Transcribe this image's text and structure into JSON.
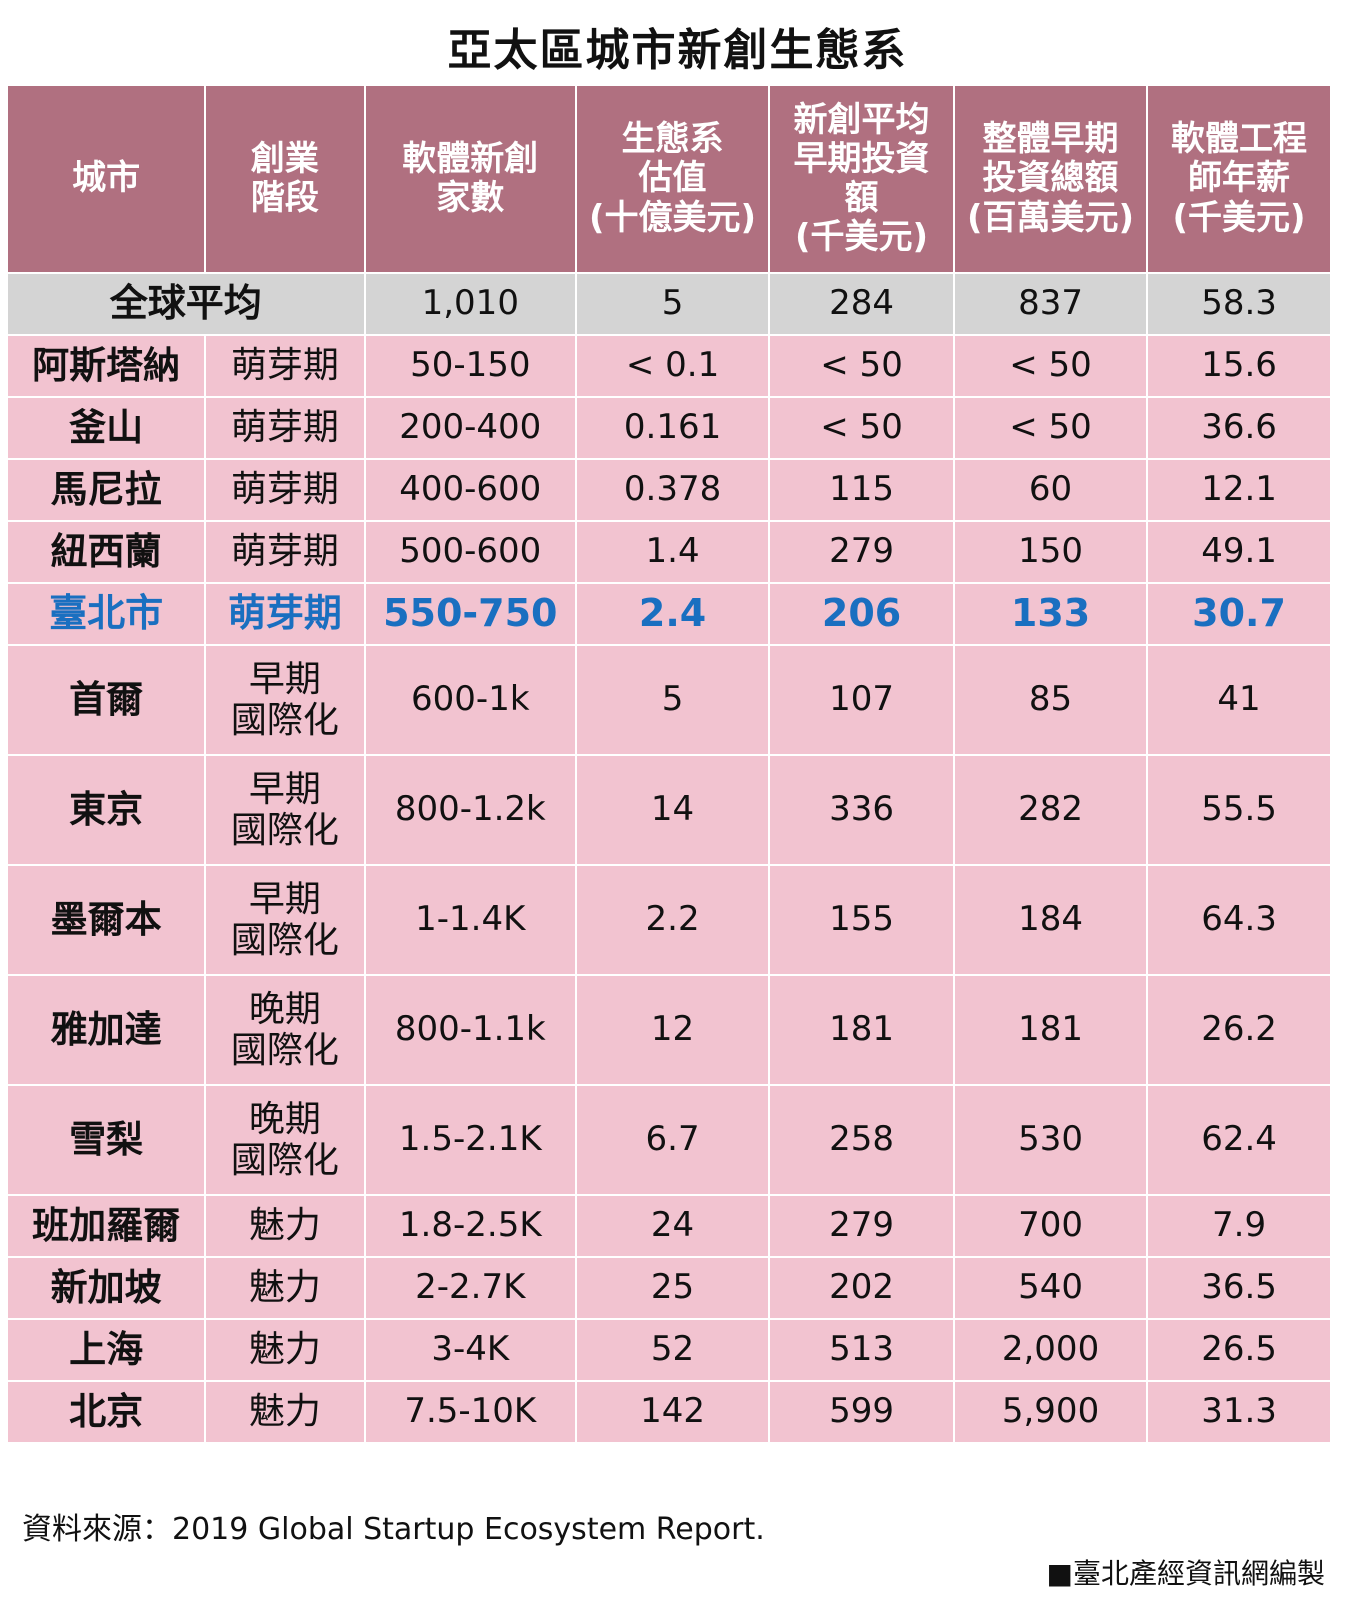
{
  "title": "亞太區城市新創生態系",
  "chart_data": {
    "type": "table",
    "title": "亞太區城市新創生態系",
    "columns": [
      "城市",
      "創業\n階段",
      "軟體新創\n家數",
      "生態系\n估值\n(十億美元)",
      "新創平均\n早期投資\n額\n(千美元)",
      "整體早期\n投資總額\n(百萬美元)",
      "軟體工程\n師年薪\n(千美元)"
    ],
    "global_average": {
      "label": "全球平均",
      "values": [
        "1,010",
        "5",
        "284",
        "837",
        "58.3"
      ]
    },
    "rows": [
      {
        "city": "阿斯塔納",
        "stage": "萌芽期",
        "values": [
          "50-150",
          "< 0.1",
          "< 50",
          "< 50",
          "15.6"
        ],
        "tall": false,
        "highlight": false
      },
      {
        "city": "釜山",
        "stage": "萌芽期",
        "values": [
          "200-400",
          "0.161",
          "< 50",
          "< 50",
          "36.6"
        ],
        "tall": false,
        "highlight": false
      },
      {
        "city": "馬尼拉",
        "stage": "萌芽期",
        "values": [
          "400-600",
          "0.378",
          "115",
          "60",
          "12.1"
        ],
        "tall": false,
        "highlight": false
      },
      {
        "city": "紐西蘭",
        "stage": "萌芽期",
        "values": [
          "500-600",
          "1.4",
          "279",
          "150",
          "49.1"
        ],
        "tall": false,
        "highlight": false
      },
      {
        "city": "臺北市",
        "stage": "萌芽期",
        "values": [
          "550-750",
          "2.4",
          "206",
          "133",
          "30.7"
        ],
        "tall": false,
        "highlight": true
      },
      {
        "city": "首爾",
        "stage": "早期\n國際化",
        "values": [
          "600-1k",
          "5",
          "107",
          "85",
          "41"
        ],
        "tall": true,
        "highlight": false
      },
      {
        "city": "東京",
        "stage": "早期\n國際化",
        "values": [
          "800-1.2k",
          "14",
          "336",
          "282",
          "55.5"
        ],
        "tall": true,
        "highlight": false
      },
      {
        "city": "墨爾本",
        "stage": "早期\n國際化",
        "values": [
          "1-1.4K",
          "2.2",
          "155",
          "184",
          "64.3"
        ],
        "tall": true,
        "highlight": false
      },
      {
        "city": "雅加達",
        "stage": "晚期\n國際化",
        "values": [
          "800-1.1k",
          "12",
          "181",
          "181",
          "26.2"
        ],
        "tall": true,
        "highlight": false
      },
      {
        "city": "雪梨",
        "stage": "晚期\n國際化",
        "values": [
          "1.5-2.1K",
          "6.7",
          "258",
          "530",
          "62.4"
        ],
        "tall": true,
        "highlight": false
      },
      {
        "city": "班加羅爾",
        "stage": "魅力",
        "values": [
          "1.8-2.5K",
          "24",
          "279",
          "700",
          "7.9"
        ],
        "tall": false,
        "highlight": false
      },
      {
        "city": "新加坡",
        "stage": "魅力",
        "values": [
          "2-2.7K",
          "25",
          "202",
          "540",
          "36.5"
        ],
        "tall": false,
        "highlight": false
      },
      {
        "city": "上海",
        "stage": "魅力",
        "values": [
          "3-4K",
          "52",
          "513",
          "2,000",
          "26.5"
        ],
        "tall": false,
        "highlight": false
      },
      {
        "city": "北京",
        "stage": "魅力",
        "values": [
          "7.5-10K",
          "142",
          "599",
          "5,900",
          "31.3"
        ],
        "tall": false,
        "highlight": false
      }
    ]
  },
  "footer": {
    "source": "資料來源：2019 Global Startup Ecosystem Report.",
    "credit": "■臺北產經資訊網編製"
  },
  "colors": {
    "header_bg": "#b07080",
    "average_bg": "#d4d4d4",
    "row_bg": "#f2c3d0",
    "highlight_text": "#1a6fc0"
  }
}
